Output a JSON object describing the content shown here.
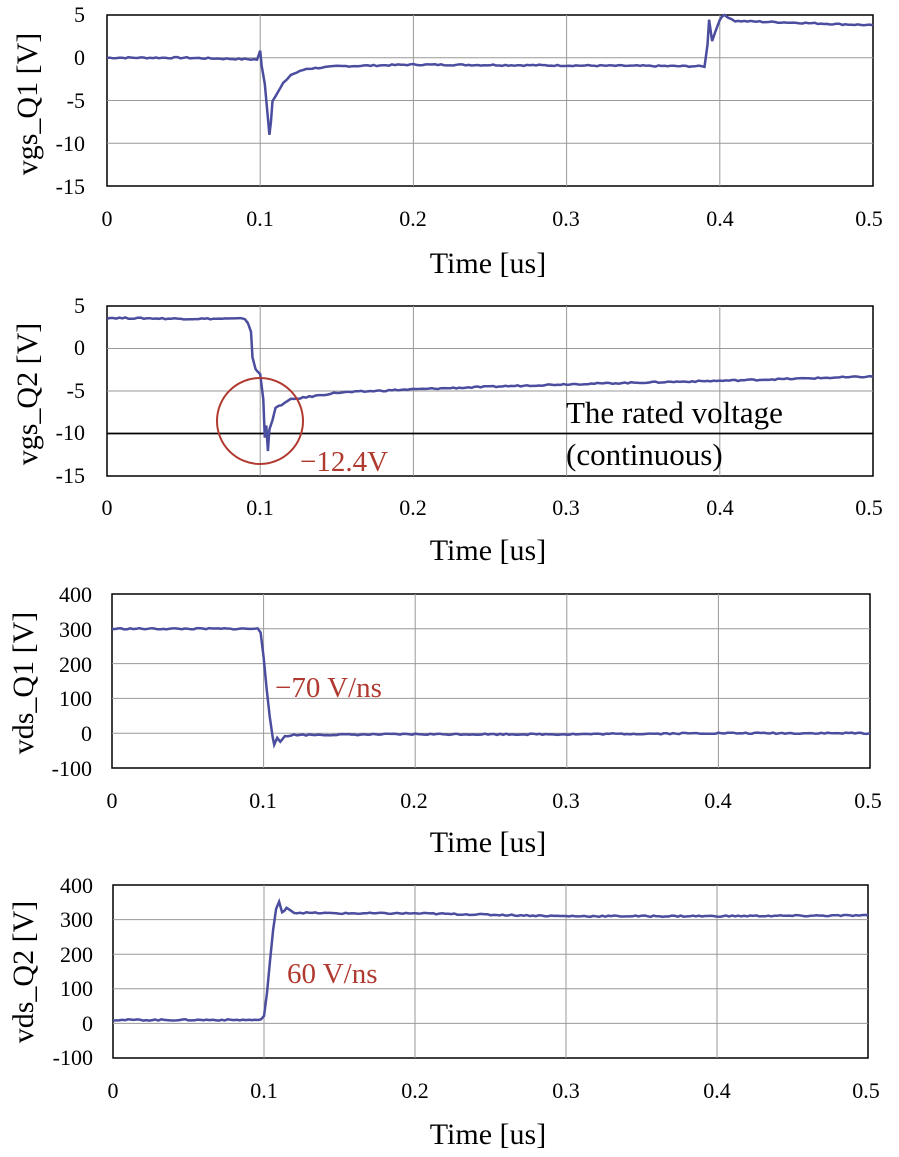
{
  "colors": {
    "trace": "#4b4d9e",
    "annotation": "#b03a30",
    "grid": "#999999",
    "frame": "#000000",
    "reference_line": "#000000"
  },
  "chart_data": [
    {
      "type": "line",
      "ylabel": "vgs_Q1 [V]",
      "xlabel": "Time [us]",
      "xlim": [
        0,
        0.5
      ],
      "ylim": [
        -15,
        5
      ],
      "xticks": [
        "0",
        "0.1",
        "0.2",
        "0.3",
        "0.4",
        "0.5"
      ],
      "yticks": [
        "5",
        "0",
        "-5",
        "-10",
        "-15"
      ],
      "grid": true,
      "series": [
        {
          "x": [
            0,
            0.05,
            0.098,
            0.1,
            0.101,
            0.103,
            0.105,
            0.106,
            0.107,
            0.108,
            0.11,
            0.115,
            0.12,
            0.13,
            0.15,
            0.2,
            0.3,
            0.39,
            0.392,
            0.393,
            0.395,
            0.397,
            0.4,
            0.403,
            0.41,
            0.45,
            0.5
          ],
          "values": [
            0,
            0,
            -0.2,
            0.8,
            -1.0,
            -3.0,
            -7.0,
            -9.0,
            -7.5,
            -5.0,
            -4.5,
            -3.0,
            -2.0,
            -1.3,
            -1.0,
            -0.8,
            -0.9,
            -1.0,
            1.5,
            4.5,
            2.0,
            3.0,
            4.5,
            5.0,
            4.3,
            4.1,
            3.8
          ]
        }
      ]
    },
    {
      "type": "line",
      "ylabel": "vgs_Q2 [V]",
      "xlabel": "Time [us]",
      "xlim": [
        0,
        0.5
      ],
      "ylim": [
        -15,
        5
      ],
      "xticks": [
        "0",
        "0.1",
        "0.2",
        "0.3",
        "0.4",
        "0.5"
      ],
      "yticks": [
        "5",
        "0",
        "-5",
        "-10",
        "-15"
      ],
      "grid": true,
      "reference_line": -10,
      "annotations": [
        "−12.4V",
        "The rated voltage",
        "(continuous)"
      ],
      "series": [
        {
          "x": [
            0,
            0.05,
            0.085,
            0.09,
            0.092,
            0.094,
            0.095,
            0.097,
            0.1,
            0.102,
            0.103,
            0.104,
            0.105,
            0.106,
            0.108,
            0.11,
            0.12,
            0.15,
            0.2,
            0.3,
            0.4,
            0.5
          ],
          "values": [
            3.6,
            3.5,
            3.5,
            3.5,
            3.0,
            2.0,
            -1.0,
            -2.5,
            -3.0,
            -6.0,
            -10.5,
            -9.0,
            -12.0,
            -9.5,
            -8.5,
            -7.0,
            -6.0,
            -5.2,
            -4.8,
            -4.2,
            -3.8,
            -3.3
          ]
        }
      ]
    },
    {
      "type": "line",
      "ylabel": "vds_Q1 [V]",
      "xlabel": "Time [us]",
      "xlim": [
        0,
        0.5
      ],
      "ylim": [
        -100,
        400
      ],
      "xticks": [
        "0",
        "0.1",
        "0.2",
        "0.3",
        "0.4",
        "0.5"
      ],
      "yticks": [
        "400",
        "300",
        "200",
        "100",
        "0",
        "-100"
      ],
      "grid": true,
      "annotations": [
        "−70 V/ns"
      ],
      "series": [
        {
          "x": [
            0,
            0.05,
            0.096,
            0.098,
            0.1,
            0.102,
            0.104,
            0.106,
            0.107,
            0.109,
            0.111,
            0.114,
            0.12,
            0.2,
            0.3,
            0.4,
            0.5
          ],
          "values": [
            300,
            300,
            300,
            290,
            220,
            130,
            50,
            -10,
            -35,
            -15,
            -25,
            -8,
            -5,
            -3,
            -3,
            0,
            0
          ]
        }
      ]
    },
    {
      "type": "line",
      "ylabel": "vds_Q2 [V]",
      "xlabel": "Time [us]",
      "xlim": [
        0,
        0.5
      ],
      "ylim": [
        -100,
        400
      ],
      "xticks": [
        "0",
        "0.1",
        "0.2",
        "0.3",
        "0.4",
        "0.5"
      ],
      "yticks": [
        "400",
        "300",
        "200",
        "100",
        "0",
        "-100"
      ],
      "grid": true,
      "annotations": [
        "60 V/ns"
      ],
      "series": [
        {
          "x": [
            0,
            0.05,
            0.098,
            0.1,
            0.102,
            0.104,
            0.106,
            0.108,
            0.11,
            0.112,
            0.115,
            0.12,
            0.15,
            0.2,
            0.3,
            0.4,
            0.5
          ],
          "values": [
            10,
            10,
            10,
            20,
            90,
            180,
            270,
            330,
            350,
            320,
            335,
            320,
            318,
            318,
            310,
            310,
            312
          ]
        }
      ]
    }
  ]
}
